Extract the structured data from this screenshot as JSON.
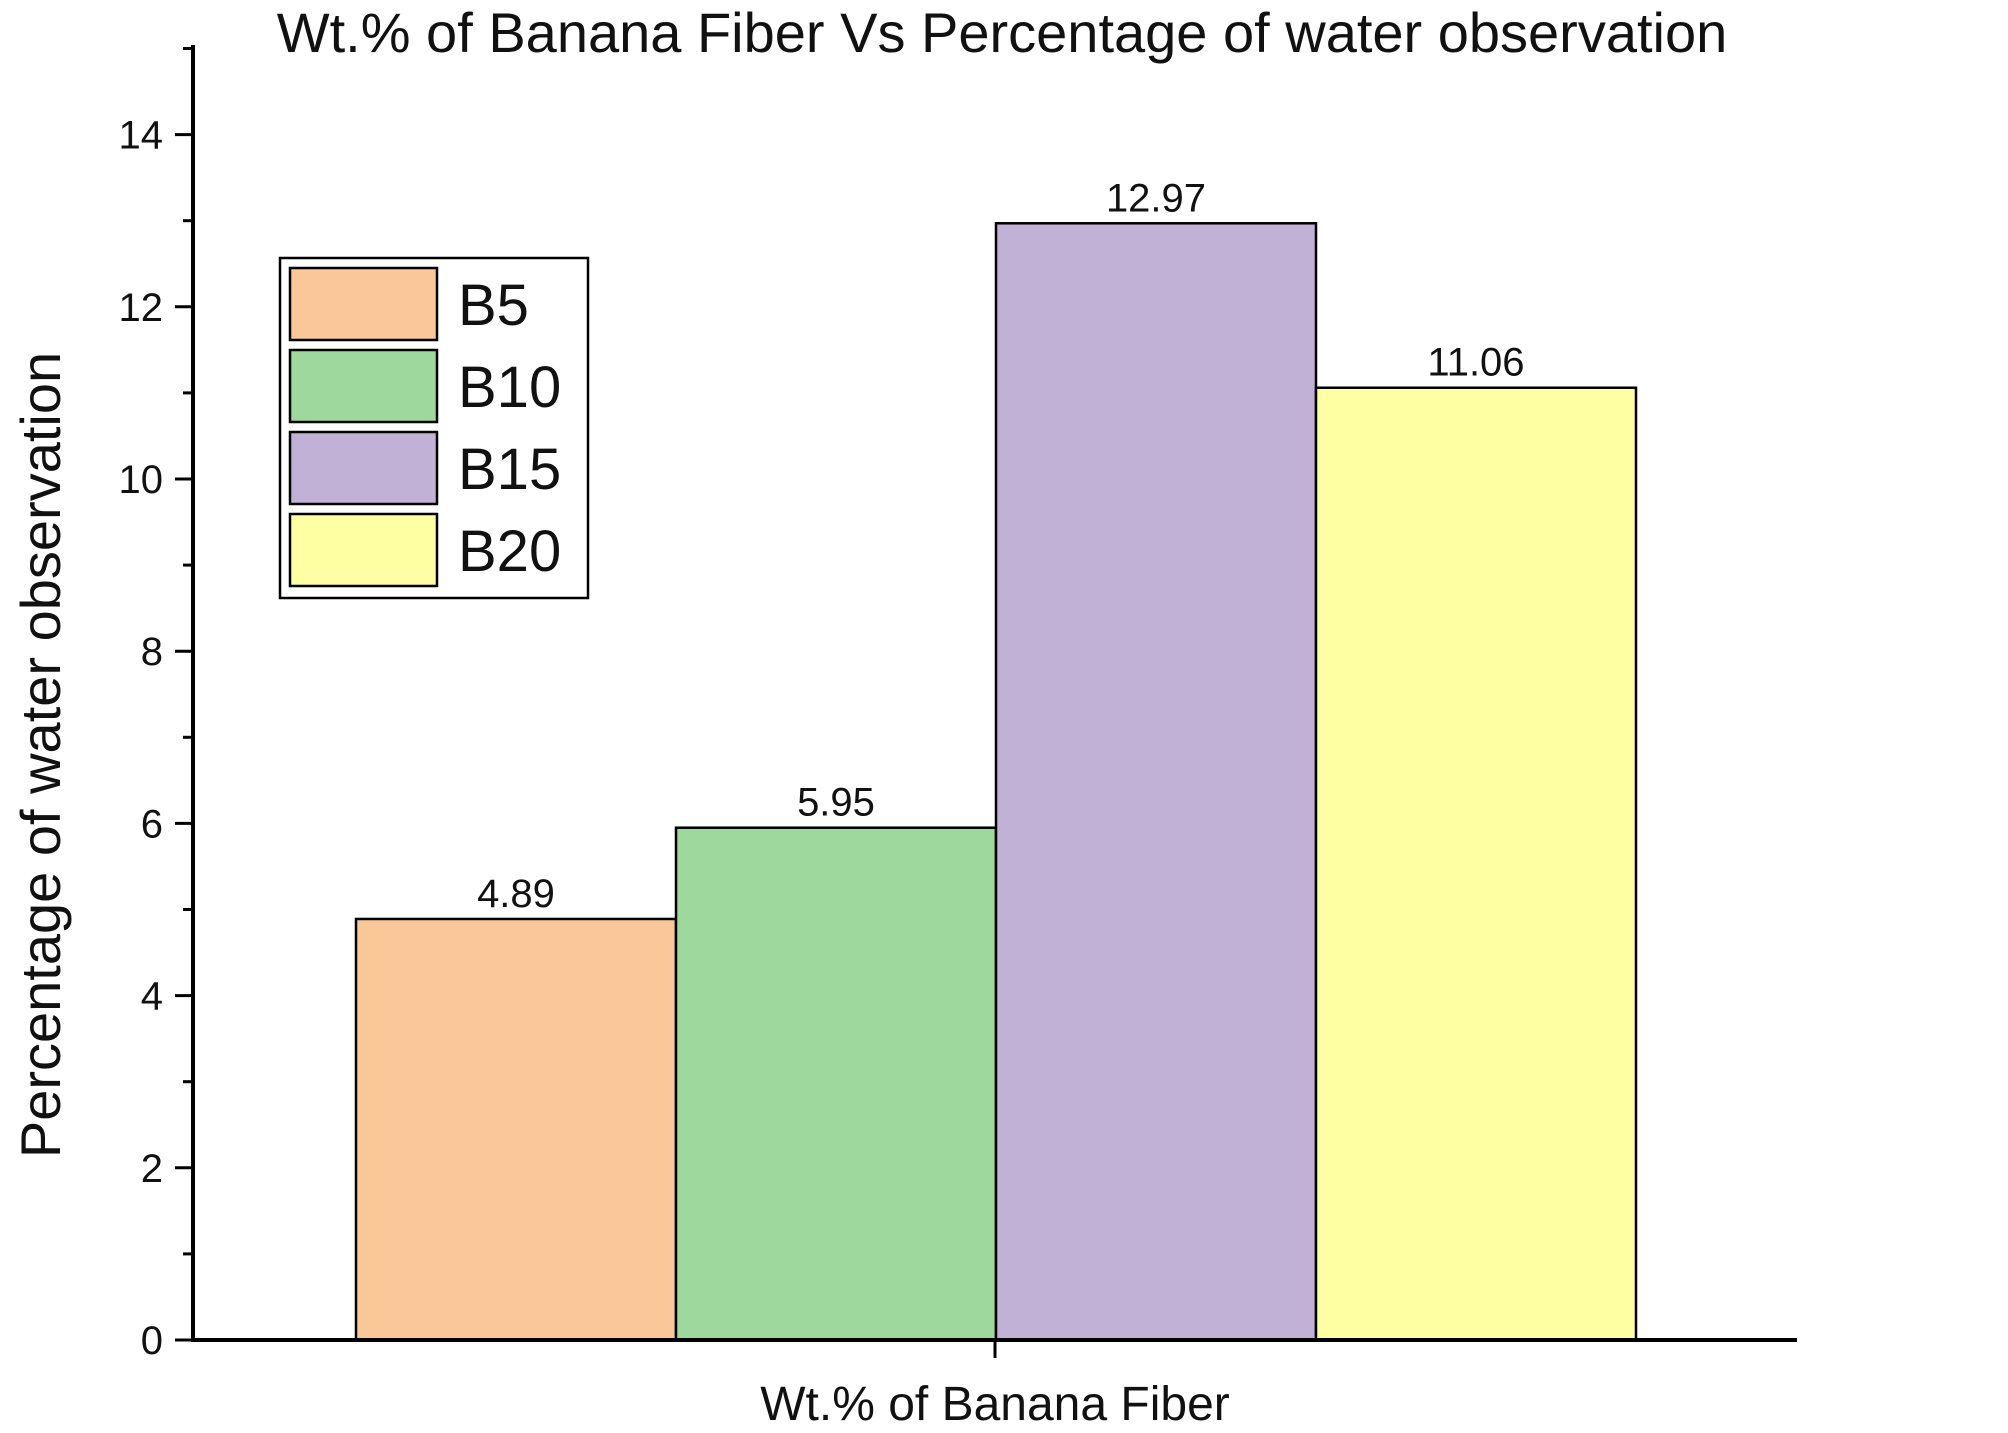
{
  "chart_data": {
    "type": "bar",
    "title": "Wt.% of Banana Fiber Vs Percentage of  water observation",
    "xlabel": "Wt.% of Banana Fiber",
    "ylabel": "Percentage of  water observation",
    "ylim": [
      0,
      15
    ],
    "yticks": [
      0,
      2,
      4,
      6,
      8,
      10,
      12,
      14
    ],
    "grid": false,
    "legend_position": "top-left",
    "series": [
      {
        "name": "B5",
        "value": 4.89,
        "label": "4.89",
        "color": "#f9c798"
      },
      {
        "name": "B10",
        "value": 5.95,
        "label": "5.95",
        "color": "#9ed89c"
      },
      {
        "name": "B15",
        "value": 12.97,
        "label": "12.97",
        "color": "#c2b1d7"
      },
      {
        "name": "B20",
        "value": 11.06,
        "label": "11.06",
        "color": "#fefea3"
      }
    ]
  }
}
